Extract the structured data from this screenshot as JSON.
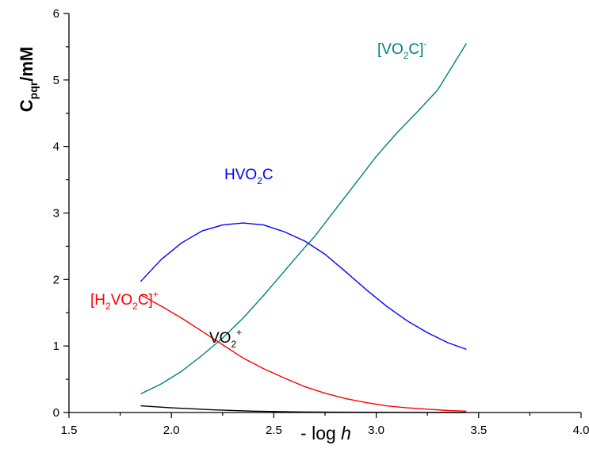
{
  "chart_data": {
    "type": "line",
    "xlabel": "- log h",
    "xlabel_parts": {
      "prefix": "- log ",
      "italic": "h"
    },
    "ylabel_parts": {
      "main": "C",
      "subscript": "pqr",
      "suffix": "/mM"
    },
    "xlim": [
      1.5,
      4.0
    ],
    "ylim": [
      0,
      6
    ],
    "xticks": [
      "1.5",
      "2.0",
      "2.5",
      "3.0",
      "3.5",
      "4.0"
    ],
    "yticks": [
      "0",
      "1",
      "2",
      "3",
      "4",
      "5",
      "6"
    ],
    "grid": false,
    "legend": "none",
    "series": [
      {
        "name": "[VO2C]-",
        "label_parts": {
          "a": "[VO",
          "sub": "2",
          "b": "C]",
          "sup": "-"
        },
        "color": "#008080",
        "points": [
          [
            1.85,
            0.28
          ],
          [
            1.95,
            0.43
          ],
          [
            2.05,
            0.62
          ],
          [
            2.15,
            0.86
          ],
          [
            2.25,
            1.12
          ],
          [
            2.35,
            1.42
          ],
          [
            2.45,
            1.76
          ],
          [
            2.55,
            2.12
          ],
          [
            2.65,
            2.48
          ],
          [
            2.7,
            2.65
          ],
          [
            2.8,
            3.05
          ],
          [
            2.9,
            3.45
          ],
          [
            3.0,
            3.85
          ],
          [
            3.1,
            4.2
          ],
          [
            3.2,
            4.52
          ],
          [
            3.3,
            4.85
          ],
          [
            3.4,
            5.35
          ],
          [
            3.44,
            5.55
          ]
        ]
      },
      {
        "name": "HVO2C",
        "label_parts": {
          "a": "HVO",
          "sub": "2",
          "b": "C",
          "sup": ""
        },
        "color": "#0000ff",
        "points": [
          [
            1.85,
            1.97
          ],
          [
            1.95,
            2.3
          ],
          [
            2.05,
            2.55
          ],
          [
            2.15,
            2.73
          ],
          [
            2.25,
            2.82
          ],
          [
            2.35,
            2.85
          ],
          [
            2.45,
            2.82
          ],
          [
            2.55,
            2.72
          ],
          [
            2.65,
            2.58
          ],
          [
            2.75,
            2.38
          ],
          [
            2.85,
            2.12
          ],
          [
            2.95,
            1.85
          ],
          [
            3.05,
            1.6
          ],
          [
            3.15,
            1.38
          ],
          [
            3.25,
            1.2
          ],
          [
            3.35,
            1.05
          ],
          [
            3.44,
            0.95
          ]
        ]
      },
      {
        "name": "[H2VO2C]+",
        "label_parts": {
          "a": "[H",
          "sub": "2",
          "b": "VO",
          "sub2": "2",
          "c": "C]",
          "sup": "+"
        },
        "color": "#ff0000",
        "points": [
          [
            1.85,
            1.77
          ],
          [
            1.95,
            1.6
          ],
          [
            2.05,
            1.42
          ],
          [
            2.15,
            1.22
          ],
          [
            2.25,
            1.02
          ],
          [
            2.35,
            0.82
          ],
          [
            2.45,
            0.66
          ],
          [
            2.55,
            0.52
          ],
          [
            2.65,
            0.39
          ],
          [
            2.75,
            0.29
          ],
          [
            2.85,
            0.21
          ],
          [
            2.95,
            0.15
          ],
          [
            3.05,
            0.1
          ],
          [
            3.15,
            0.07
          ],
          [
            3.25,
            0.05
          ],
          [
            3.35,
            0.03
          ],
          [
            3.44,
            0.02
          ]
        ]
      },
      {
        "name": "VO2+",
        "label_parts": {
          "a": "VO",
          "sub": "2",
          "b": "",
          "sup": "+"
        },
        "color": "#000000",
        "points": [
          [
            1.85,
            0.1
          ],
          [
            2.0,
            0.07
          ],
          [
            2.2,
            0.04
          ],
          [
            2.4,
            0.02
          ],
          [
            2.6,
            0.01
          ],
          [
            2.8,
            0.005
          ],
          [
            3.0,
            0.003
          ],
          [
            3.2,
            0.001
          ],
          [
            3.44,
            0.0
          ]
        ]
      }
    ]
  }
}
